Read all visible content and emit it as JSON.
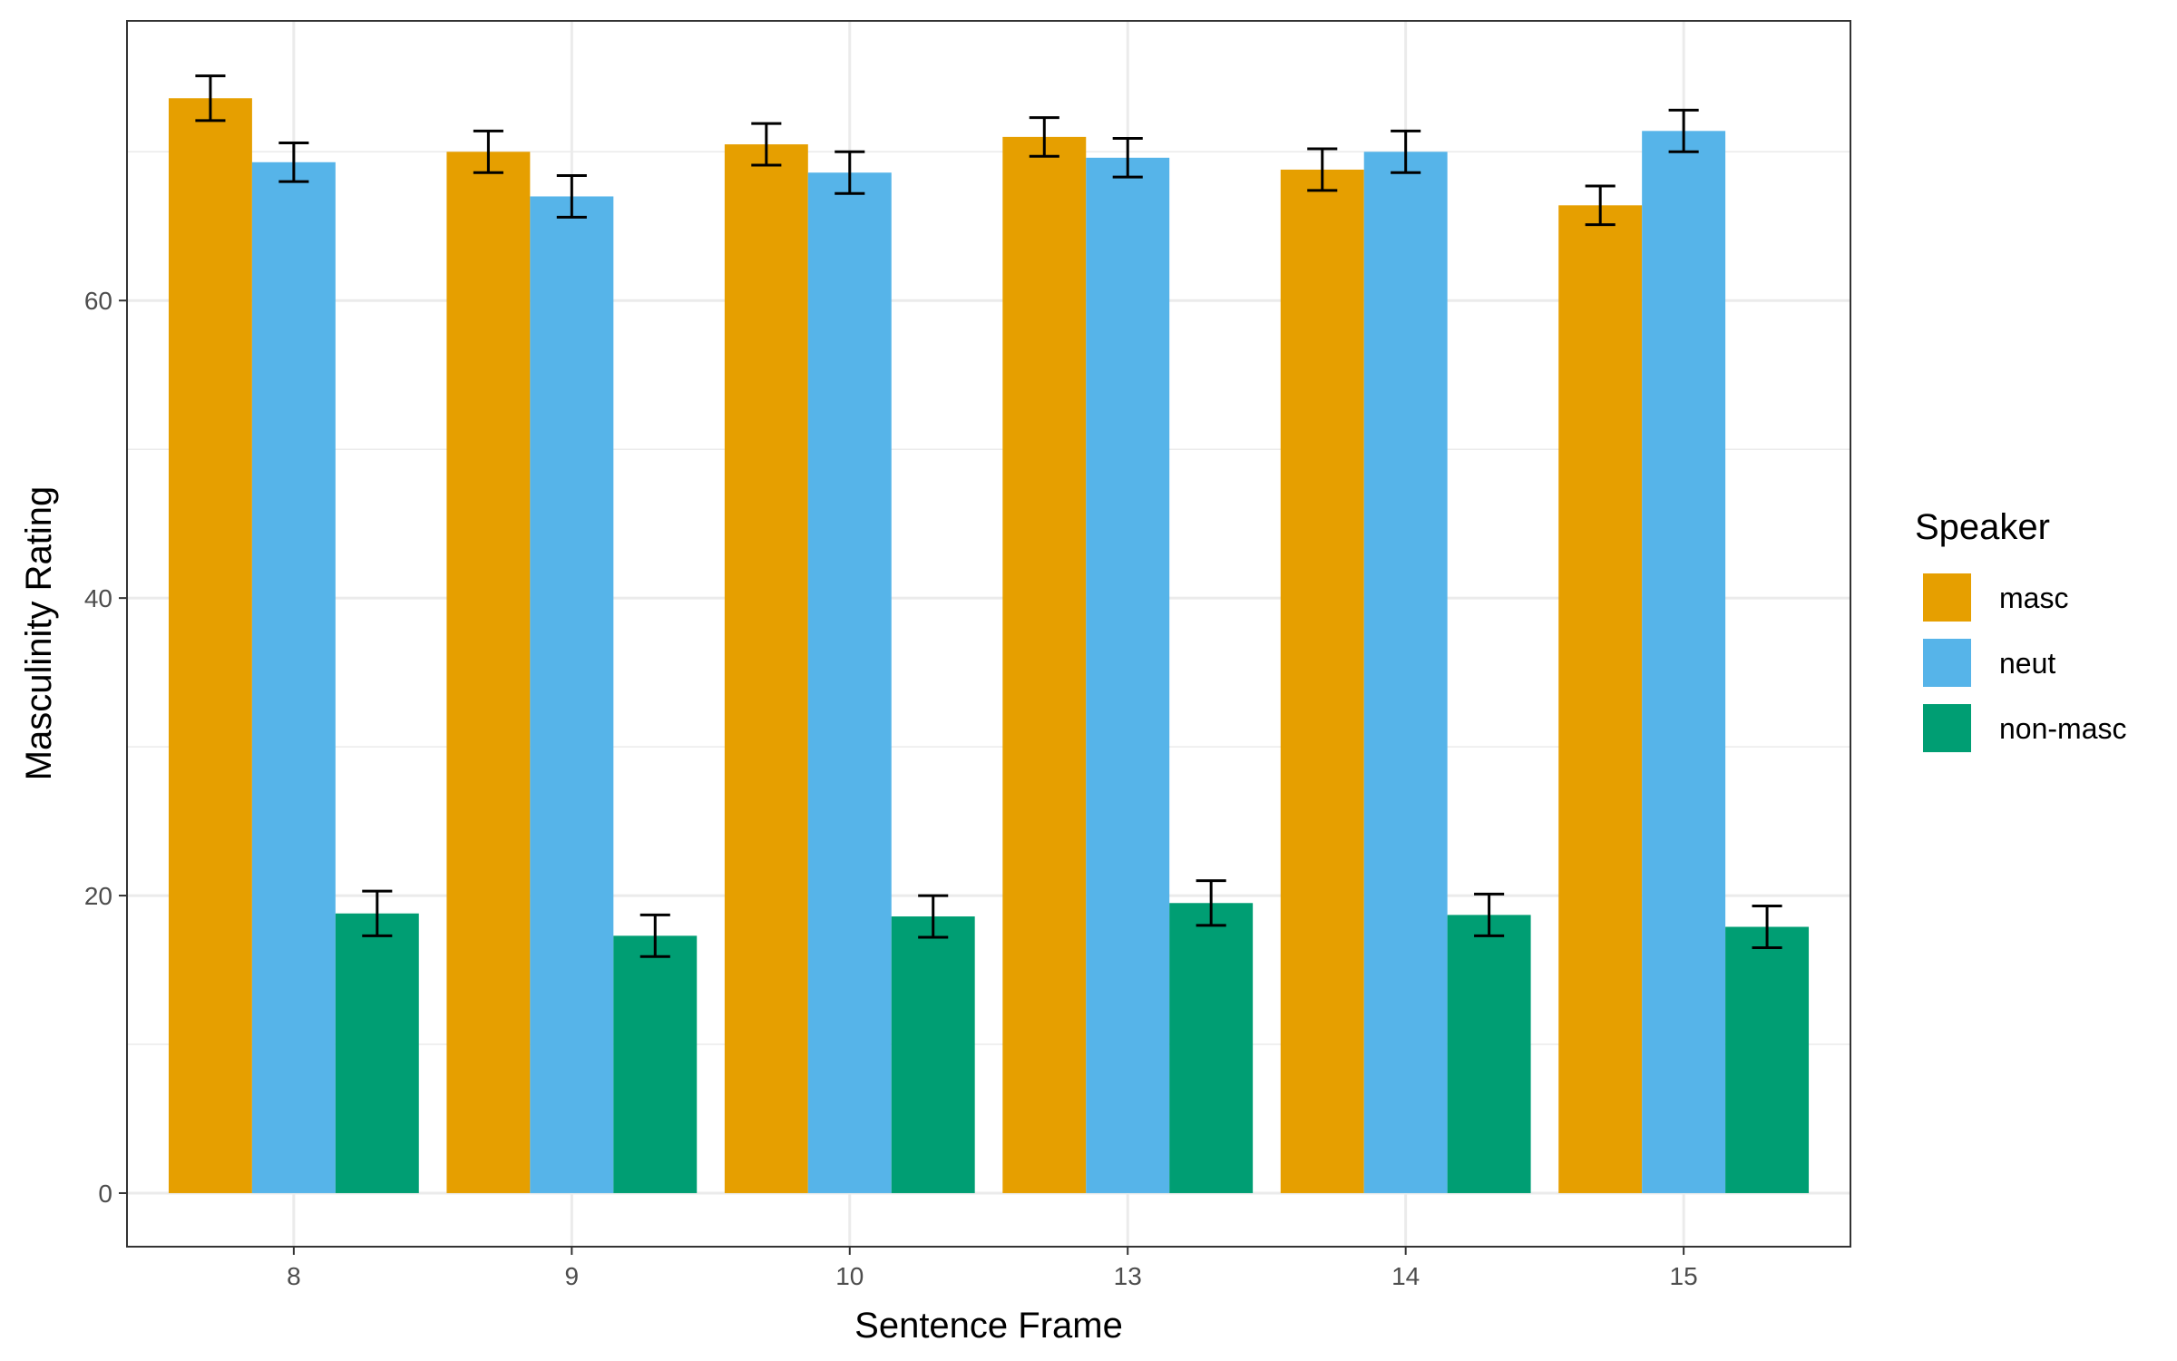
{
  "chart_data": {
    "type": "bar",
    "xlabel": "Sentence Frame",
    "ylabel": "Masculinity Rating",
    "categories": [
      "8",
      "9",
      "10",
      "13",
      "14",
      "15"
    ],
    "ylim": [
      -3.6,
      78.8
    ],
    "yticks": [
      0,
      20,
      40,
      60
    ],
    "grid": true,
    "legend": {
      "title": "Speaker",
      "placement": "right"
    },
    "series": [
      {
        "name": "masc",
        "color": "#E69F00",
        "values": [
          73.6,
          70.0,
          70.5,
          71.0,
          68.8,
          66.4
        ],
        "errors": [
          1.5,
          1.4,
          1.4,
          1.3,
          1.4,
          1.3
        ]
      },
      {
        "name": "neut",
        "color": "#56B4E9",
        "values": [
          69.3,
          67.0,
          68.6,
          69.6,
          70.0,
          71.4
        ],
        "errors": [
          1.3,
          1.4,
          1.4,
          1.3,
          1.4,
          1.4
        ]
      },
      {
        "name": "non-masc",
        "color": "#009E73",
        "values": [
          18.8,
          17.3,
          18.6,
          19.5,
          18.7,
          17.9
        ],
        "errors": [
          1.5,
          1.4,
          1.4,
          1.5,
          1.4,
          1.4
        ]
      }
    ]
  }
}
